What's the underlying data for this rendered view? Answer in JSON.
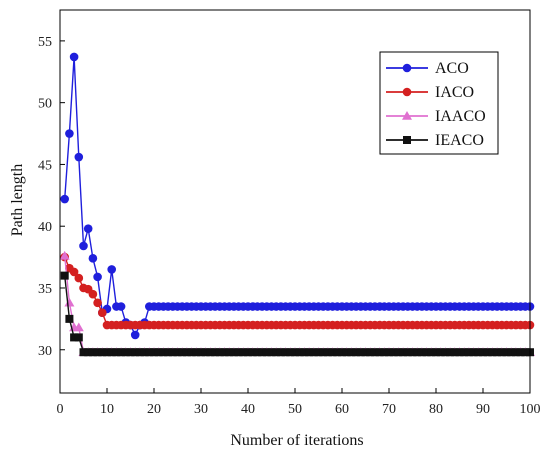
{
  "chart_data": {
    "type": "line",
    "xlabel": "Number of iterations",
    "ylabel": "Path length",
    "xlim": [
      0,
      100
    ],
    "ylim": [
      26.5,
      57.5
    ],
    "xticks": [
      0,
      10,
      20,
      30,
      40,
      50,
      60,
      70,
      80,
      90,
      100
    ],
    "yticks": [
      30,
      35,
      40,
      45,
      50,
      55
    ],
    "grid": false,
    "legend_position": "top-right",
    "series": [
      {
        "name": "ACO",
        "color": "#1f1fdc",
        "marker": "circle",
        "x": [
          1,
          2,
          3,
          4,
          5,
          6,
          7,
          8,
          9,
          10,
          11,
          12,
          13,
          14,
          15,
          16,
          17,
          18,
          19,
          20,
          21,
          22,
          23,
          24,
          25,
          26,
          27,
          28,
          29,
          30,
          31,
          32,
          33,
          34,
          35,
          36,
          37,
          38,
          39,
          40,
          41,
          42,
          43,
          44,
          45,
          46,
          47,
          48,
          49,
          50,
          51,
          52,
          53,
          54,
          55,
          56,
          57,
          58,
          59,
          60,
          61,
          62,
          63,
          64,
          65,
          66,
          67,
          68,
          69,
          70,
          71,
          72,
          73,
          74,
          75,
          76,
          77,
          78,
          79,
          80,
          81,
          82,
          83,
          84,
          85,
          86,
          87,
          88,
          89,
          90,
          91,
          92,
          93,
          94,
          95,
          96,
          97,
          98,
          99,
          100
        ],
        "values": [
          42.2,
          47.5,
          53.7,
          45.6,
          38.4,
          39.8,
          37.4,
          35.9,
          33.0,
          33.3,
          36.5,
          33.5,
          33.5,
          32.2,
          32.0,
          31.2,
          32.0,
          32.2,
          33.5,
          33.5,
          33.5,
          33.5,
          33.5,
          33.5,
          33.5,
          33.5,
          33.5,
          33.5,
          33.5,
          33.5,
          33.5,
          33.5,
          33.5,
          33.5,
          33.5,
          33.5,
          33.5,
          33.5,
          33.5,
          33.5,
          33.5,
          33.5,
          33.5,
          33.5,
          33.5,
          33.5,
          33.5,
          33.5,
          33.5,
          33.5,
          33.5,
          33.5,
          33.5,
          33.5,
          33.5,
          33.5,
          33.5,
          33.5,
          33.5,
          33.5,
          33.5,
          33.5,
          33.5,
          33.5,
          33.5,
          33.5,
          33.5,
          33.5,
          33.5,
          33.5,
          33.5,
          33.5,
          33.5,
          33.5,
          33.5,
          33.5,
          33.5,
          33.5,
          33.5,
          33.5,
          33.5,
          33.5,
          33.5,
          33.5,
          33.5,
          33.5,
          33.5,
          33.5,
          33.5,
          33.5,
          33.5,
          33.5,
          33.5,
          33.5,
          33.5,
          33.5,
          33.5,
          33.5,
          33.5,
          33.5
        ]
      },
      {
        "name": "IACO",
        "color": "#d42020",
        "marker": "circle",
        "x": [
          1,
          2,
          3,
          4,
          5,
          6,
          7,
          8,
          9,
          10,
          11,
          12,
          13,
          14,
          15,
          16,
          17,
          18,
          19,
          20,
          21,
          22,
          23,
          24,
          25,
          26,
          27,
          28,
          29,
          30,
          31,
          32,
          33,
          34,
          35,
          36,
          37,
          38,
          39,
          40,
          41,
          42,
          43,
          44,
          45,
          46,
          47,
          48,
          49,
          50,
          51,
          52,
          53,
          54,
          55,
          56,
          57,
          58,
          59,
          60,
          61,
          62,
          63,
          64,
          65,
          66,
          67,
          68,
          69,
          70,
          71,
          72,
          73,
          74,
          75,
          76,
          77,
          78,
          79,
          80,
          81,
          82,
          83,
          84,
          85,
          86,
          87,
          88,
          89,
          90,
          91,
          92,
          93,
          94,
          95,
          96,
          97,
          98,
          99,
          100
        ],
        "values": [
          37.5,
          36.6,
          36.3,
          35.8,
          35.0,
          34.9,
          34.5,
          33.8,
          33.0,
          32.0,
          32.0,
          32.0,
          32.0,
          32.0,
          32.0,
          32.0,
          32.0,
          32.0,
          32.0,
          32.0,
          32.0,
          32.0,
          32.0,
          32.0,
          32.0,
          32.0,
          32.0,
          32.0,
          32.0,
          32.0,
          32.0,
          32.0,
          32.0,
          32.0,
          32.0,
          32.0,
          32.0,
          32.0,
          32.0,
          32.0,
          32.0,
          32.0,
          32.0,
          32.0,
          32.0,
          32.0,
          32.0,
          32.0,
          32.0,
          32.0,
          32.0,
          32.0,
          32.0,
          32.0,
          32.0,
          32.0,
          32.0,
          32.0,
          32.0,
          32.0,
          32.0,
          32.0,
          32.0,
          32.0,
          32.0,
          32.0,
          32.0,
          32.0,
          32.0,
          32.0,
          32.0,
          32.0,
          32.0,
          32.0,
          32.0,
          32.0,
          32.0,
          32.0,
          32.0,
          32.0,
          32.0,
          32.0,
          32.0,
          32.0,
          32.0,
          32.0,
          32.0,
          32.0,
          32.0,
          32.0,
          32.0,
          32.0,
          32.0,
          32.0,
          32.0,
          32.0,
          32.0,
          32.0,
          32.0,
          32.0
        ]
      },
      {
        "name": "IAACO",
        "color": "#e070d0",
        "marker": "triangle",
        "x": [
          1,
          2,
          3,
          4,
          5,
          6,
          7,
          8,
          9,
          10,
          11,
          12,
          13,
          14,
          15,
          16,
          17,
          18,
          19,
          20,
          21,
          22,
          23,
          24,
          25,
          26,
          27,
          28,
          29,
          30,
          31,
          32,
          33,
          34,
          35,
          36,
          37,
          38,
          39,
          40,
          41,
          42,
          43,
          44,
          45,
          46,
          47,
          48,
          49,
          50,
          51,
          52,
          53,
          54,
          55,
          56,
          57,
          58,
          59,
          60,
          61,
          62,
          63,
          64,
          65,
          66,
          67,
          68,
          69,
          70,
          71,
          72,
          73,
          74,
          75,
          76,
          77,
          78,
          79,
          80,
          81,
          82,
          83,
          84,
          85,
          86,
          87,
          88,
          89,
          90,
          91,
          92,
          93,
          94,
          95,
          96,
          97,
          98,
          99,
          100
        ],
        "values": [
          37.6,
          33.8,
          31.8,
          31.8,
          29.8,
          29.8,
          29.8,
          29.8,
          29.8,
          29.8,
          29.8,
          29.8,
          29.8,
          29.8,
          29.8,
          29.8,
          29.8,
          29.8,
          29.8,
          29.8,
          29.8,
          29.8,
          29.8,
          29.8,
          29.8,
          29.8,
          29.8,
          29.8,
          29.8,
          29.8,
          29.8,
          29.8,
          29.8,
          29.8,
          29.8,
          29.8,
          29.8,
          29.8,
          29.8,
          29.8,
          29.8,
          29.8,
          29.8,
          29.8,
          29.8,
          29.8,
          29.8,
          29.8,
          29.8,
          29.8,
          29.8,
          29.8,
          29.8,
          29.8,
          29.8,
          29.8,
          29.8,
          29.8,
          29.8,
          29.8,
          29.8,
          29.8,
          29.8,
          29.8,
          29.8,
          29.8,
          29.8,
          29.8,
          29.8,
          29.8,
          29.8,
          29.8,
          29.8,
          29.8,
          29.8,
          29.8,
          29.8,
          29.8,
          29.8,
          29.8,
          29.8,
          29.8,
          29.8,
          29.8,
          29.8,
          29.8,
          29.8,
          29.8,
          29.8,
          29.8,
          29.8,
          29.8,
          29.8,
          29.8,
          29.8,
          29.8,
          29.8,
          29.8,
          29.8,
          29.8
        ]
      },
      {
        "name": "IEACO",
        "color": "#111111",
        "marker": "square",
        "x": [
          1,
          2,
          3,
          4,
          5,
          6,
          7,
          8,
          9,
          10,
          11,
          12,
          13,
          14,
          15,
          16,
          17,
          18,
          19,
          20,
          21,
          22,
          23,
          24,
          25,
          26,
          27,
          28,
          29,
          30,
          31,
          32,
          33,
          34,
          35,
          36,
          37,
          38,
          39,
          40,
          41,
          42,
          43,
          44,
          45,
          46,
          47,
          48,
          49,
          50,
          51,
          52,
          53,
          54,
          55,
          56,
          57,
          58,
          59,
          60,
          61,
          62,
          63,
          64,
          65,
          66,
          67,
          68,
          69,
          70,
          71,
          72,
          73,
          74,
          75,
          76,
          77,
          78,
          79,
          80,
          81,
          82,
          83,
          84,
          85,
          86,
          87,
          88,
          89,
          90,
          91,
          92,
          93,
          94,
          95,
          96,
          97,
          98,
          99,
          100
        ],
        "values": [
          36.0,
          32.5,
          31.0,
          31.0,
          29.8,
          29.8,
          29.8,
          29.8,
          29.8,
          29.8,
          29.8,
          29.8,
          29.8,
          29.8,
          29.8,
          29.8,
          29.8,
          29.8,
          29.8,
          29.8,
          29.8,
          29.8,
          29.8,
          29.8,
          29.8,
          29.8,
          29.8,
          29.8,
          29.8,
          29.8,
          29.8,
          29.8,
          29.8,
          29.8,
          29.8,
          29.8,
          29.8,
          29.8,
          29.8,
          29.8,
          29.8,
          29.8,
          29.8,
          29.8,
          29.8,
          29.8,
          29.8,
          29.8,
          29.8,
          29.8,
          29.8,
          29.8,
          29.8,
          29.8,
          29.8,
          29.8,
          29.8,
          29.8,
          29.8,
          29.8,
          29.8,
          29.8,
          29.8,
          29.8,
          29.8,
          29.8,
          29.8,
          29.8,
          29.8,
          29.8,
          29.8,
          29.8,
          29.8,
          29.8,
          29.8,
          29.8,
          29.8,
          29.8,
          29.8,
          29.8,
          29.8,
          29.8,
          29.8,
          29.8,
          29.8,
          29.8,
          29.8,
          29.8,
          29.8,
          29.8,
          29.8,
          29.8,
          29.8,
          29.8,
          29.8,
          29.8,
          29.8,
          29.8,
          29.8,
          29.8
        ]
      }
    ]
  }
}
